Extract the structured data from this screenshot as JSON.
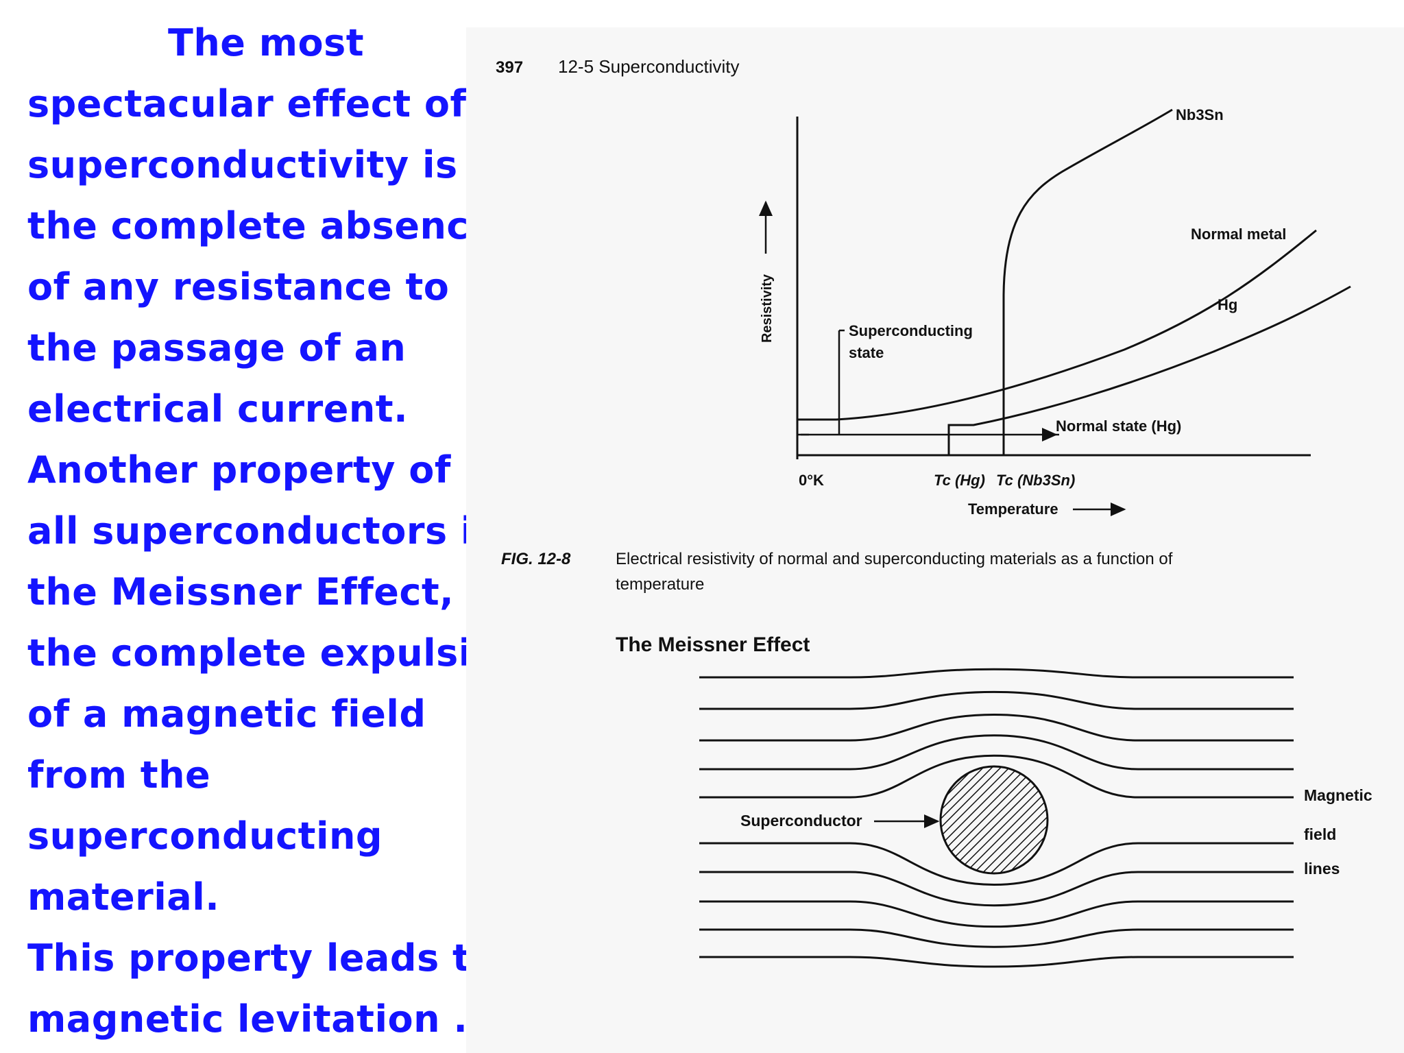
{
  "slide_text": {
    "lines": [
      "The most",
      "spectacular effect of",
      "superconductivity is",
      "the complete absence",
      "of any resistance to",
      "the passage of an",
      "electrical current.",
      "Another property of",
      "all superconductors is",
      "the Meissner Effect,",
      "the complete expulsion",
      "of a magnetic field",
      "from the",
      "superconducting",
      "material.",
      "This property leads to",
      "magnetic levitation . ."
    ]
  },
  "colors": {
    "slide_text": "#1414ff",
    "scan_background": "#f7f7f7",
    "ink": "#111111"
  },
  "book": {
    "page_number": "397",
    "section": "12-5 Superconductivity",
    "figure_label": "FIG. 12-8",
    "caption_line1": "Electrical resistivity of normal and superconducting materials as a function of",
    "caption_line2": "temperature"
  },
  "resistivity_figure": {
    "y_axis_label": "Resistivity",
    "x_axis_label": "Temperature",
    "origin_label": "0°K",
    "tc_hg_label": "Tc (Hg)",
    "tc_nb3sn_label": "Tc (Nb3Sn)",
    "curve_labels": {
      "nb3sn": "Nb3Sn",
      "normal_metal": "Normal metal",
      "hg": "Hg"
    },
    "superconducting_state_line1": "Superconducting",
    "superconducting_state_line2": "state",
    "normal_state_label": "Normal state (Hg)"
  },
  "meissner_figure": {
    "title": "The Meissner Effect",
    "superconductor_label": "Superconductor",
    "field_label_line1": "Magnetic",
    "field_label_line2": "field",
    "field_label_line3": "lines",
    "field_line_count": 10
  }
}
